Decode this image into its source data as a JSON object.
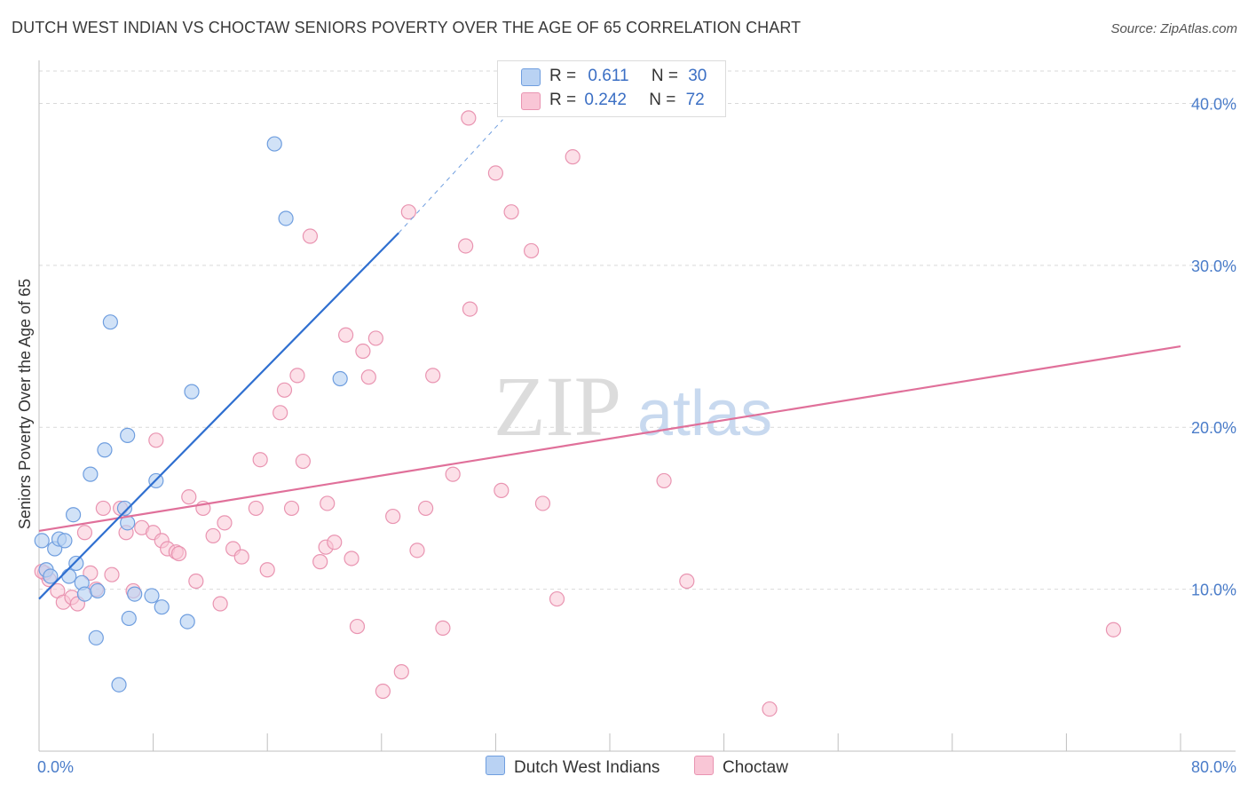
{
  "title": "DUTCH WEST INDIAN VS CHOCTAW SENIORS POVERTY OVER THE AGE OF 65 CORRELATION CHART",
  "source": "Source: ZipAtlas.com",
  "watermark": {
    "zip": "ZIP",
    "atlas": "atlas"
  },
  "legend": {
    "rows": [
      {
        "r_label": "R =",
        "r_value": "0.611",
        "n_label": "N =",
        "n_value": "30"
      },
      {
        "r_label": "R =",
        "r_value": "0.242",
        "n_label": "N =",
        "n_value": "72"
      }
    ]
  },
  "bottom_legend": [
    {
      "label": "Dutch West Indians"
    },
    {
      "label": "Choctaw"
    }
  ],
  "colors": {
    "blue_fill": "#b9d2f3",
    "blue_stroke": "#6f9edf",
    "blue_line": "#2f6fd0",
    "pink_fill": "#f9c6d6",
    "pink_stroke": "#e994b1",
    "pink_line": "#e0709a",
    "tick_text": "#4a7cc9",
    "grid": "#d9d9d9"
  },
  "chart_data": {
    "type": "scatter",
    "title": "DUTCH WEST INDIAN VS CHOCTAW SENIORS POVERTY OVER THE AGE OF 65 CORRELATION CHART",
    "xlabel": "",
    "ylabel": "Seniors Poverty Over the Age of 65",
    "xlim": [
      0,
      80
    ],
    "ylim": [
      0,
      42
    ],
    "x_tick_labels": [
      "0.0%",
      "80.0%"
    ],
    "y_tick_labels": [
      "10.0%",
      "20.0%",
      "30.0%",
      "40.0%"
    ],
    "y_ticks": [
      10,
      20,
      30,
      40
    ],
    "grid": "horizontal dashed",
    "legend_position": "top-center",
    "series": [
      {
        "name": "Dutch West Indians",
        "color": "#b9d2f3",
        "r": 0.611,
        "n": 30,
        "trend": {
          "x0": 0,
          "y0": 9.4,
          "x1": 25.2,
          "y1": 32.0,
          "dash_to": [
            32.5,
            39.0
          ]
        },
        "points": [
          [
            0.2,
            13.0
          ],
          [
            0.5,
            11.2
          ],
          [
            0.8,
            10.8
          ],
          [
            1.1,
            12.5
          ],
          [
            1.4,
            13.1
          ],
          [
            1.8,
            13.0
          ],
          [
            2.4,
            14.6
          ],
          [
            2.6,
            11.6
          ],
          [
            2.1,
            10.8
          ],
          [
            3.0,
            10.4
          ],
          [
            3.2,
            9.7
          ],
          [
            4.1,
            9.9
          ],
          [
            4.6,
            18.6
          ],
          [
            3.6,
            17.1
          ],
          [
            5.0,
            26.5
          ],
          [
            4.0,
            7.0
          ],
          [
            5.6,
            4.1
          ],
          [
            6.0,
            15.0
          ],
          [
            6.2,
            14.1
          ],
          [
            6.2,
            19.5
          ],
          [
            6.3,
            8.2
          ],
          [
            6.7,
            9.7
          ],
          [
            7.9,
            9.6
          ],
          [
            8.2,
            16.7
          ],
          [
            8.6,
            8.9
          ],
          [
            10.4,
            8.0
          ],
          [
            10.7,
            22.2
          ],
          [
            16.5,
            37.5
          ],
          [
            17.3,
            32.9
          ],
          [
            21.1,
            23.0
          ]
        ]
      },
      {
        "name": "Choctaw",
        "color": "#f9c6d6",
        "r": 0.242,
        "n": 72,
        "trend": {
          "x0": 0,
          "y0": 13.6,
          "x1": 80,
          "y1": 25.0
        },
        "points": [
          [
            0.4,
            11.0
          ],
          [
            0.7,
            10.6
          ],
          [
            1.3,
            9.9
          ],
          [
            1.7,
            9.2
          ],
          [
            2.3,
            9.5
          ],
          [
            2.7,
            9.1
          ],
          [
            3.2,
            13.5
          ],
          [
            3.6,
            11.0
          ],
          [
            4.0,
            10.0
          ],
          [
            4.5,
            15.0
          ],
          [
            5.1,
            10.9
          ],
          [
            5.7,
            15.0
          ],
          [
            6.1,
            13.5
          ],
          [
            6.6,
            9.9
          ],
          [
            7.2,
            13.8
          ],
          [
            8.0,
            13.5
          ],
          [
            8.2,
            19.2
          ],
          [
            8.6,
            13.0
          ],
          [
            9.0,
            12.5
          ],
          [
            9.6,
            12.3
          ],
          [
            9.8,
            12.2
          ],
          [
            10.5,
            15.7
          ],
          [
            11.0,
            10.5
          ],
          [
            11.5,
            15.0
          ],
          [
            12.2,
            13.3
          ],
          [
            12.7,
            9.1
          ],
          [
            13.0,
            14.1
          ],
          [
            13.6,
            12.5
          ],
          [
            14.2,
            12.0
          ],
          [
            15.2,
            15.0
          ],
          [
            15.5,
            18.0
          ],
          [
            16.0,
            11.2
          ],
          [
            16.9,
            20.9
          ],
          [
            17.2,
            22.3
          ],
          [
            17.7,
            15.0
          ],
          [
            18.1,
            23.2
          ],
          [
            18.5,
            17.9
          ],
          [
            19.0,
            31.8
          ],
          [
            19.7,
            11.7
          ],
          [
            20.1,
            12.6
          ],
          [
            20.2,
            15.3
          ],
          [
            20.7,
            12.9
          ],
          [
            21.5,
            25.7
          ],
          [
            21.9,
            11.9
          ],
          [
            22.3,
            7.7
          ],
          [
            22.7,
            24.7
          ],
          [
            23.1,
            23.1
          ],
          [
            23.6,
            25.5
          ],
          [
            24.1,
            3.7
          ],
          [
            24.8,
            14.5
          ],
          [
            25.4,
            4.9
          ],
          [
            25.9,
            33.3
          ],
          [
            26.5,
            12.4
          ],
          [
            27.1,
            15.0
          ],
          [
            27.6,
            23.2
          ],
          [
            28.3,
            7.6
          ],
          [
            29.0,
            17.1
          ],
          [
            29.9,
            31.2
          ],
          [
            30.2,
            27.3
          ],
          [
            30.1,
            39.1
          ],
          [
            32.0,
            35.7
          ],
          [
            32.4,
            16.1
          ],
          [
            33.1,
            33.3
          ],
          [
            34.5,
            30.9
          ],
          [
            35.3,
            15.3
          ],
          [
            36.3,
            9.4
          ],
          [
            37.4,
            36.7
          ],
          [
            43.8,
            16.7
          ],
          [
            45.4,
            10.5
          ],
          [
            51.2,
            2.6
          ],
          [
            75.3,
            7.5
          ],
          [
            0.2,
            11.1
          ]
        ]
      }
    ]
  }
}
